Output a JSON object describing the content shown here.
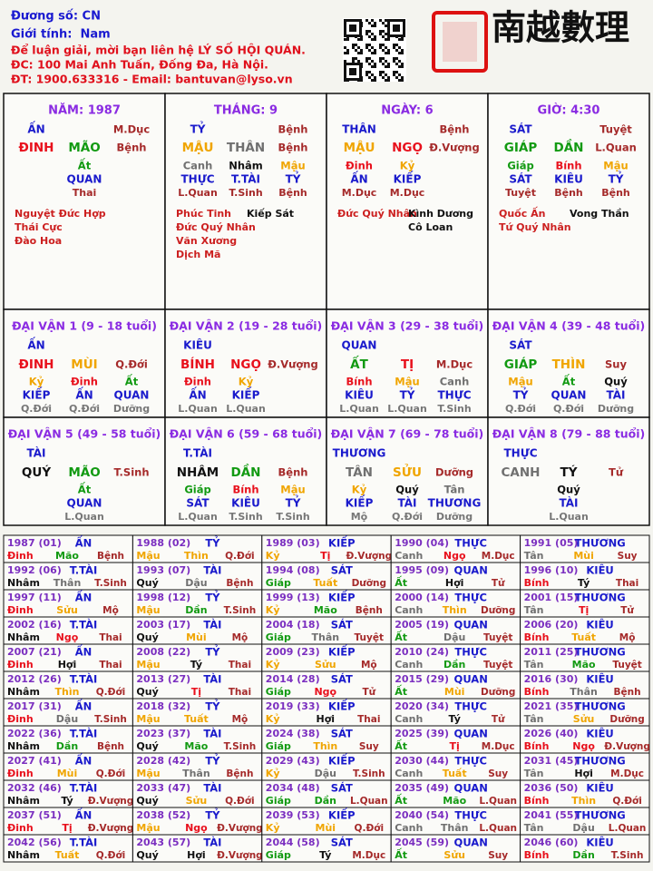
{
  "header": {
    "lines": [
      {
        "text": "Đương số: CN",
        "color": "#1a1ad0"
      },
      {
        "text": "Giới tính:  Nam",
        "color": "#1a1ad0"
      },
      {
        "text": "Để luận giải, mời bạn liên hệ LÝ SỐ HỘI QUÁN.",
        "color": "#e0101c"
      },
      {
        "text": "ĐC: 100 Mai Anh Tuấn, Đống Đa, Hà Nội.",
        "color": "#e0101c"
      },
      {
        "text": "ĐT: 1900.633316 - Email: bantuvan@lyso.vn",
        "color": "#e0101c"
      }
    ],
    "logo": "南越數理"
  },
  "palette": {
    "đinh": "#e8101c",
    "bính": "#e8101c",
    "tị": "#e8101c",
    "ngọ": "#e8101c",
    "mậu": "#f0a500",
    "kỷ": "#f0a500",
    "thìn": "#f0a500",
    "tuất": "#f0a500",
    "sửu": "#f0a500",
    "mùi": "#f0a500",
    "giáp": "#129a12",
    "ất": "#129a12",
    "dần": "#129a12",
    "mão": "#129a12",
    "canh": "#707070",
    "tân": "#707070",
    "thân": "#707070",
    "dậu": "#707070",
    "nhâm": "#111111",
    "quý": "#111111",
    "tý": "#111111",
    "hợi": "#111111"
  },
  "pillars": [
    {
      "title": "NĂM: 1987",
      "god": "ẤN",
      "stem_stage": "M.Dục",
      "stem": "ĐINH",
      "branch": "MÃO",
      "stage": "Bệnh",
      "hidden": [
        {
          "stem": "Ất",
          "god": "QUAN",
          "stage": "Thai"
        }
      ],
      "stars_left": [
        "Nguyệt Đức Hợp",
        "Thái Cực",
        "Đào Hoa"
      ],
      "stars_right": []
    },
    {
      "title": "THÁNG: 9",
      "god": "TỶ",
      "stem_stage": "Bệnh",
      "stem": "MẬU",
      "branch": "THÂN",
      "stage": "Bệnh",
      "hidden": [
        {
          "stem": "Canh",
          "god": "THỰC",
          "stage": "L.Quan"
        },
        {
          "stem": "Nhâm",
          "god": "T.TÀI",
          "stage": "T.Sinh"
        },
        {
          "stem": "Mậu",
          "god": "TỶ",
          "stage": "Bệnh"
        }
      ],
      "stars_left": [
        "Phúc Tinh",
        "Đức Quý Nhân",
        "Văn Xương",
        "Dịch Mã"
      ],
      "stars_right": [
        "Kiếp Sát"
      ]
    },
    {
      "title": "NGÀY: 6",
      "god": "THÂN",
      "stem_stage": "Bệnh",
      "stem": "MẬU",
      "branch": "NGỌ",
      "stage": "Đ.Vượng",
      "hidden": [
        {
          "stem": "Đinh",
          "god": "ẤN",
          "stage": "M.Dục"
        },
        {
          "stem": "Kỷ",
          "god": "KIẾP",
          "stage": "M.Dục"
        }
      ],
      "stars_left": [
        "Đức Quý Nhân"
      ],
      "stars_right": [
        "Kình Dương",
        "Cô Loan"
      ]
    },
    {
      "title": "GIỜ: 4:30",
      "god": "SÁT",
      "stem_stage": "Tuyệt",
      "stem": "GIÁP",
      "branch": "DẦN",
      "stage": "L.Quan",
      "hidden": [
        {
          "stem": "Giáp",
          "god": "SÁT",
          "stage": "Tuyệt"
        },
        {
          "stem": "Bính",
          "god": "KIÊU",
          "stage": "Bệnh"
        },
        {
          "stem": "Mậu",
          "god": "TỶ",
          "stage": "Bệnh"
        }
      ],
      "stars_left": [
        "Quốc Ấn",
        "Tứ Quý Nhân"
      ],
      "stars_right": [
        "Vong Thần"
      ]
    }
  ],
  "luck_pillars": [
    {
      "title": "ĐẠI VẬN 1 (9 - 18 tuổi)",
      "god": "ẤN",
      "stem": "ĐINH",
      "branch": "MÙI",
      "stage": "Q.Đới",
      "hidden": [
        {
          "stem": "Kỷ",
          "god": "KIẾP",
          "stage": "Q.Đới"
        },
        {
          "stem": "Đinh",
          "god": "ẤN",
          "stage": "Q.Đới"
        },
        {
          "stem": "Ất",
          "god": "QUAN",
          "stage": "Dưỡng"
        }
      ]
    },
    {
      "title": "ĐẠI VẬN 2 (19 - 28 tuổi)",
      "god": "KIÊU",
      "stem": "BÍNH",
      "branch": "NGỌ",
      "stage": "Đ.Vượng",
      "hidden": [
        {
          "stem": "Đinh",
          "god": "ẤN",
          "stage": "L.Quan"
        },
        {
          "stem": "Kỷ",
          "god": "KIẾP",
          "stage": "L.Quan"
        }
      ]
    },
    {
      "title": "ĐẠI VẬN 3 (29 - 38 tuổi)",
      "god": "QUAN",
      "stem": "ẤT",
      "branch": "TỊ",
      "stage": "M.Dục",
      "hidden": [
        {
          "stem": "Bính",
          "god": "KIÊU",
          "stage": "L.Quan"
        },
        {
          "stem": "Mậu",
          "god": "TỶ",
          "stage": "L.Quan"
        },
        {
          "stem": "Canh",
          "god": "THỰC",
          "stage": "T.Sinh"
        }
      ]
    },
    {
      "title": "ĐẠI VẬN 4 (39 - 48 tuổi)",
      "god": "SÁT",
      "stem": "GIÁP",
      "branch": "THÌN",
      "stage": "Suy",
      "hidden": [
        {
          "stem": "Mậu",
          "god": "TỶ",
          "stage": "Q.Đới"
        },
        {
          "stem": "Ất",
          "god": "QUAN",
          "stage": "Q.Đới"
        },
        {
          "stem": "Quý",
          "god": "TÀI",
          "stage": "Dưỡng"
        }
      ]
    },
    {
      "title": "ĐẠI VẬN 5 (49 - 58 tuổi)",
      "god": "TÀI",
      "stem": "QUÝ",
      "branch": "MÃO",
      "stage": "T.Sinh",
      "hidden": [
        {
          "stem": "Ất",
          "god": "QUAN",
          "stage": "L.Quan"
        }
      ]
    },
    {
      "title": "ĐẠI VẬN 6 (59 - 68 tuổi)",
      "god": "T.TÀI",
      "stem": "NHÂM",
      "branch": "DẦN",
      "stage": "Bệnh",
      "hidden": [
        {
          "stem": "Giáp",
          "god": "SÁT",
          "stage": "L.Quan"
        },
        {
          "stem": "Bính",
          "god": "KIÊU",
          "stage": "T.Sinh"
        },
        {
          "stem": "Mậu",
          "god": "TỶ",
          "stage": "T.Sinh"
        }
      ]
    },
    {
      "title": "ĐẠI VẬN 7 (69 - 78 tuổi)",
      "god": "THƯƠNG",
      "stem": "TÂN",
      "branch": "SỬU",
      "stage": "Dưỡng",
      "hidden": [
        {
          "stem": "Kỷ",
          "god": "KIẾP",
          "stage": "Mộ"
        },
        {
          "stem": "Quý",
          "god": "TÀI",
          "stage": "Q.Đới"
        },
        {
          "stem": "Tân",
          "god": "THƯƠNG",
          "stage": "Dưỡng"
        }
      ]
    },
    {
      "title": "ĐẠI VẬN 8 (79 - 88 tuổi)",
      "god": "THỰC",
      "stem": "CANH",
      "branch": "TÝ",
      "stage": "Tử",
      "hidden": [
        {
          "stem": "Quý",
          "god": "TÀI",
          "stage": "L.Quan"
        }
      ]
    }
  ],
  "years": [
    {
      "year": "1987 (01)",
      "god": "ẤN",
      "stem": "Đinh",
      "branch": "Mão",
      "stage": "Bệnh"
    },
    {
      "year": "1988 (02)",
      "god": "TỶ",
      "stem": "Mậu",
      "branch": "Thìn",
      "stage": "Q.Đới"
    },
    {
      "year": "1989 (03)",
      "god": "KIẾP",
      "stem": "Kỷ",
      "branch": "Tị",
      "stage": "Đ.Vượng"
    },
    {
      "year": "1990 (04)",
      "god": "THỰC",
      "stem": "Canh",
      "branch": "Ngọ",
      "stage": "M.Dục"
    },
    {
      "year": "1991 (05)",
      "god": "THƯƠNG",
      "stem": "Tân",
      "branch": "Mùi",
      "stage": "Suy"
    },
    {
      "year": "1992 (06)",
      "god": "T.TÀI",
      "stem": "Nhâm",
      "branch": "Thân",
      "stage": "T.Sinh"
    },
    {
      "year": "1993 (07)",
      "god": "TÀI",
      "stem": "Quý",
      "branch": "Dậu",
      "stage": "Bệnh"
    },
    {
      "year": "1994 (08)",
      "god": "SÁT",
      "stem": "Giáp",
      "branch": "Tuất",
      "stage": "Dưỡng"
    },
    {
      "year": "1995 (09)",
      "god": "QUAN",
      "stem": "Ất",
      "branch": "Hợi",
      "stage": "Tử"
    },
    {
      "year": "1996 (10)",
      "god": "KIÊU",
      "stem": "Bính",
      "branch": "Tý",
      "stage": "Thai"
    },
    {
      "year": "1997 (11)",
      "god": "ẤN",
      "stem": "Đinh",
      "branch": "Sửu",
      "stage": "Mộ"
    },
    {
      "year": "1998 (12)",
      "god": "TỶ",
      "stem": "Mậu",
      "branch": "Dần",
      "stage": "T.Sinh"
    },
    {
      "year": "1999 (13)",
      "god": "KIẾP",
      "stem": "Kỷ",
      "branch": "Mão",
      "stage": "Bệnh"
    },
    {
      "year": "2000 (14)",
      "god": "THỰC",
      "stem": "Canh",
      "branch": "Thìn",
      "stage": "Dưỡng"
    },
    {
      "year": "2001 (15)",
      "god": "THƯƠNG",
      "stem": "Tân",
      "branch": "Tị",
      "stage": "Tử"
    },
    {
      "year": "2002 (16)",
      "god": "T.TÀI",
      "stem": "Nhâm",
      "branch": "Ngọ",
      "stage": "Thai"
    },
    {
      "year": "2003 (17)",
      "god": "TÀI",
      "stem": "Quý",
      "branch": "Mùi",
      "stage": "Mộ"
    },
    {
      "year": "2004 (18)",
      "god": "SÁT",
      "stem": "Giáp",
      "branch": "Thân",
      "stage": "Tuyệt"
    },
    {
      "year": "2005 (19)",
      "god": "QUAN",
      "stem": "Ất",
      "branch": "Dậu",
      "stage": "Tuyệt"
    },
    {
      "year": "2006 (20)",
      "god": "KIÊU",
      "stem": "Bính",
      "branch": "Tuất",
      "stage": "Mộ"
    },
    {
      "year": "2007 (21)",
      "god": "ẤN",
      "stem": "Đinh",
      "branch": "Hợi",
      "stage": "Thai"
    },
    {
      "year": "2008 (22)",
      "god": "TỶ",
      "stem": "Mậu",
      "branch": "Tý",
      "stage": "Thai"
    },
    {
      "year": "2009 (23)",
      "god": "KIẾP",
      "stem": "Kỷ",
      "branch": "Sửu",
      "stage": "Mộ"
    },
    {
      "year": "2010 (24)",
      "god": "THỰC",
      "stem": "Canh",
      "branch": "Dần",
      "stage": "Tuyệt"
    },
    {
      "year": "2011 (25)",
      "god": "THƯƠNG",
      "stem": "Tân",
      "branch": "Mão",
      "stage": "Tuyệt"
    },
    {
      "year": "2012 (26)",
      "god": "T.TÀI",
      "stem": "Nhâm",
      "branch": "Thìn",
      "stage": "Q.Đới"
    },
    {
      "year": "2013 (27)",
      "god": "TÀI",
      "stem": "Quý",
      "branch": "Tị",
      "stage": "Thai"
    },
    {
      "year": "2014 (28)",
      "god": "SÁT",
      "stem": "Giáp",
      "branch": "Ngọ",
      "stage": "Tử"
    },
    {
      "year": "2015 (29)",
      "god": "QUAN",
      "stem": "Ất",
      "branch": "Mùi",
      "stage": "Dưỡng"
    },
    {
      "year": "2016 (30)",
      "god": "KIÊU",
      "stem": "Bính",
      "branch": "Thân",
      "stage": "Bệnh"
    },
    {
      "year": "2017 (31)",
      "god": "ẤN",
      "stem": "Đinh",
      "branch": "Dậu",
      "stage": "T.Sinh"
    },
    {
      "year": "2018 (32)",
      "god": "TỶ",
      "stem": "Mậu",
      "branch": "Tuất",
      "stage": "Mộ"
    },
    {
      "year": "2019 (33)",
      "god": "KIẾP",
      "stem": "Kỷ",
      "branch": "Hợi",
      "stage": "Thai"
    },
    {
      "year": "2020 (34)",
      "god": "THỰC",
      "stem": "Canh",
      "branch": "Tý",
      "stage": "Tử"
    },
    {
      "year": "2021 (35)",
      "god": "THƯƠNG",
      "stem": "Tân",
      "branch": "Sửu",
      "stage": "Dưỡng"
    },
    {
      "year": "2022 (36)",
      "god": "T.TÀI",
      "stem": "Nhâm",
      "branch": "Dần",
      "stage": "Bệnh"
    },
    {
      "year": "2023 (37)",
      "god": "TÀI",
      "stem": "Quý",
      "branch": "Mão",
      "stage": "T.Sinh"
    },
    {
      "year": "2024 (38)",
      "god": "SÁT",
      "stem": "Giáp",
      "branch": "Thìn",
      "stage": "Suy"
    },
    {
      "year": "2025 (39)",
      "god": "QUAN",
      "stem": "Ất",
      "branch": "Tị",
      "stage": "M.Dục"
    },
    {
      "year": "2026 (40)",
      "god": "KIÊU",
      "stem": "Bính",
      "branch": "Ngọ",
      "stage": "Đ.Vượng"
    },
    {
      "year": "2027 (41)",
      "god": "ẤN",
      "stem": "Đinh",
      "branch": "Mùi",
      "stage": "Q.Đới"
    },
    {
      "year": "2028 (42)",
      "god": "TỶ",
      "stem": "Mậu",
      "branch": "Thân",
      "stage": "Bệnh"
    },
    {
      "year": "2029 (43)",
      "god": "KIẾP",
      "stem": "Kỷ",
      "branch": "Dậu",
      "stage": "T.Sinh"
    },
    {
      "year": "2030 (44)",
      "god": "THỰC",
      "stem": "Canh",
      "branch": "Tuất",
      "stage": "Suy"
    },
    {
      "year": "2031 (45)",
      "god": "THƯƠNG",
      "stem": "Tân",
      "branch": "Hợi",
      "stage": "M.Dục"
    },
    {
      "year": "2032 (46)",
      "god": "T.TÀI",
      "stem": "Nhâm",
      "branch": "Tý",
      "stage": "Đ.Vượng"
    },
    {
      "year": "2033 (47)",
      "god": "TÀI",
      "stem": "Quý",
      "branch": "Sửu",
      "stage": "Q.Đới"
    },
    {
      "year": "2034 (48)",
      "god": "SÁT",
      "stem": "Giáp",
      "branch": "Dần",
      "stage": "L.Quan"
    },
    {
      "year": "2035 (49)",
      "god": "QUAN",
      "stem": "Ất",
      "branch": "Mão",
      "stage": "L.Quan"
    },
    {
      "year": "2036 (50)",
      "god": "KIÊU",
      "stem": "Bính",
      "branch": "Thìn",
      "stage": "Q.Đới"
    },
    {
      "year": "2037 (51)",
      "god": "ẤN",
      "stem": "Đinh",
      "branch": "Tị",
      "stage": "Đ.Vượng"
    },
    {
      "year": "2038 (52)",
      "god": "TỶ",
      "stem": "Mậu",
      "branch": "Ngọ",
      "stage": "Đ.Vượng"
    },
    {
      "year": "2039 (53)",
      "god": "KIẾP",
      "stem": "Kỷ",
      "branch": "Mùi",
      "stage": "Q.Đới"
    },
    {
      "year": "2040 (54)",
      "god": "THỰC",
      "stem": "Canh",
      "branch": "Thân",
      "stage": "L.Quan"
    },
    {
      "year": "2041 (55)",
      "god": "THƯƠNG",
      "stem": "Tân",
      "branch": "Dậu",
      "stage": "L.Quan"
    },
    {
      "year": "2042 (56)",
      "god": "T.TÀI",
      "stem": "Nhâm",
      "branch": "Tuất",
      "stage": "Q.Đới"
    },
    {
      "year": "2043 (57)",
      "god": "TÀI",
      "stem": "Quý",
      "branch": "Hợi",
      "stage": "Đ.Vượng"
    },
    {
      "year": "2044 (58)",
      "god": "SÁT",
      "stem": "Giáp",
      "branch": "Tý",
      "stage": "M.Dục"
    },
    {
      "year": "2045 (59)",
      "god": "QUAN",
      "stem": "Ất",
      "branch": "Sửu",
      "stage": "Suy"
    },
    {
      "year": "2046 (60)",
      "god": "KIÊU",
      "stem": "Bính",
      "branch": "Dần",
      "stage": "T.Sinh"
    }
  ]
}
